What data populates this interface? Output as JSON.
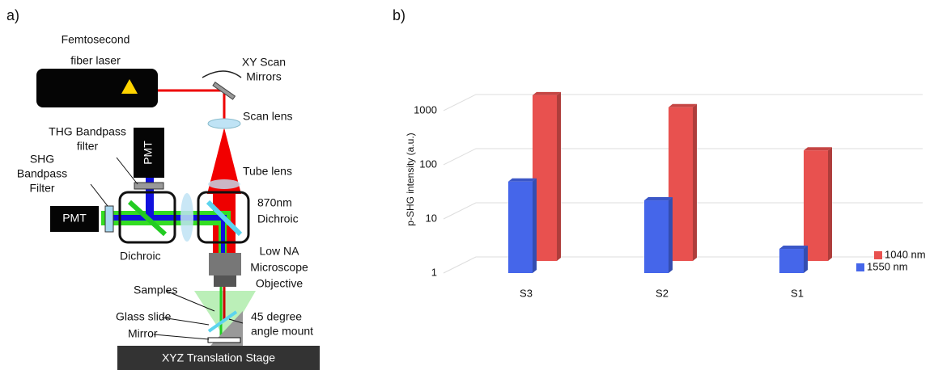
{
  "figure": {
    "panel_a": "a)",
    "panel_b": "b)"
  },
  "diagram": {
    "laser": [
      "Femtosecond",
      "fiber laser"
    ],
    "scan_mirrors": [
      "XY Scan",
      "Mirrors"
    ],
    "scan_lens": "Scan lens",
    "thg_filter": [
      "THG Bandpass",
      "filter"
    ],
    "pmt_top": "PMT",
    "shg_filter": [
      "SHG",
      "Bandpass",
      "Filter"
    ],
    "tube_lens": "Tube lens",
    "pmt_left": "PMT",
    "dichroic_870": [
      "870nm",
      "Dichroic"
    ],
    "dichroic": "Dichroic",
    "objective": [
      "Low NA",
      "Microscope",
      "Objective"
    ],
    "samples": "Samples",
    "glass_slide": "Glass slide",
    "mirror": "Mirror",
    "mount": [
      "45 degree",
      "angle mount"
    ],
    "stage": "XYZ Translation Stage"
  },
  "chart_data": {
    "type": "bar3d",
    "y_label": "p-SHG intensity (a.u.)",
    "log_scale": true,
    "categories": [
      "S3",
      "S2",
      "S1"
    ],
    "series": [
      {
        "name": "1040 nm",
        "color": "#e8514f",
        "values": [
          1150,
          690,
          110
        ]
      },
      {
        "name": "1550 nm",
        "color": "#4566ea",
        "values": [
          49,
          22,
          2.8
        ]
      }
    ],
    "ylim": [
      1,
      3000
    ],
    "yticks": [
      1,
      10,
      100,
      1000
    ],
    "grid": true,
    "legend": "lower right"
  }
}
